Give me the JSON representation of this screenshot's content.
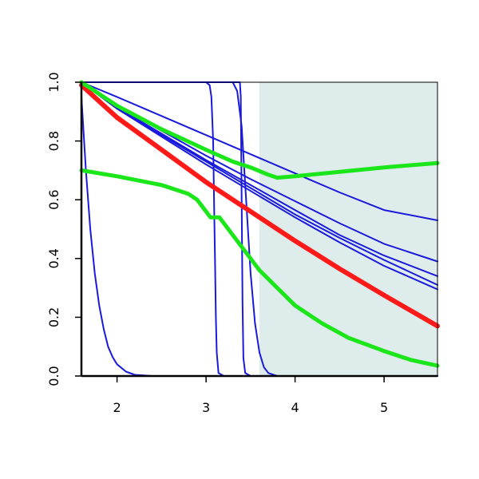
{
  "chart_data": {
    "type": "line",
    "title": "",
    "xlabel": "",
    "ylabel": "",
    "xlim": [
      1.6,
      5.6
    ],
    "ylim": [
      0.0,
      1.0
    ],
    "x_ticks": [
      2,
      3,
      4,
      5
    ],
    "y_ticks": [
      0.0,
      0.2,
      0.4,
      0.6,
      0.8,
      1.0
    ],
    "x_tick_labels": [
      "2",
      "3",
      "4",
      "5"
    ],
    "y_tick_labels": [
      "0.0",
      "0.2",
      "0.4",
      "0.6",
      "0.8",
      "1.0"
    ],
    "grid": false,
    "legend": "none",
    "shaded_region": {
      "x_start": 3.6,
      "x_end": 5.6,
      "color": "#deecec"
    },
    "series": [
      {
        "color": "#1a1adc",
        "width": 2,
        "x": [
          1.6,
          1.65,
          1.7,
          1.75,
          1.8,
          1.85,
          1.9,
          1.95,
          2.0,
          2.1,
          2.2,
          2.4,
          2.6,
          5.6
        ],
        "y": [
          0.95,
          0.7,
          0.5,
          0.35,
          0.24,
          0.16,
          0.1,
          0.065,
          0.04,
          0.015,
          0.004,
          0.0,
          0.0,
          0.0
        ]
      },
      {
        "color": "#1a1adc",
        "width": 2,
        "x": [
          1.6,
          3.0,
          3.04,
          3.06,
          3.08,
          3.09,
          3.1,
          3.11,
          3.12,
          3.14,
          3.2,
          5.6
        ],
        "y": [
          1.0,
          1.0,
          0.99,
          0.95,
          0.8,
          0.6,
          0.4,
          0.2,
          0.08,
          0.01,
          0.0,
          0.0
        ]
      },
      {
        "color": "#1a1adc",
        "width": 2,
        "x": [
          1.6,
          3.38,
          3.39,
          3.4,
          3.41,
          3.42,
          3.44,
          3.5,
          5.6
        ],
        "y": [
          1.0,
          1.0,
          0.95,
          0.6,
          0.25,
          0.06,
          0.01,
          0.0,
          0.0
        ]
      },
      {
        "color": "#1a1adc",
        "width": 2,
        "x": [
          1.6,
          3.3,
          3.35,
          3.4,
          3.45,
          3.5,
          3.55,
          3.6,
          3.65,
          3.7,
          3.8,
          5.6
        ],
        "y": [
          1.0,
          1.0,
          0.97,
          0.85,
          0.6,
          0.35,
          0.18,
          0.08,
          0.03,
          0.01,
          0.0,
          0.0
        ]
      },
      {
        "color": "#1a1adc",
        "width": 2,
        "x": [
          1.6,
          2.0,
          2.5,
          3.0,
          3.5,
          4.0,
          4.5,
          5.0,
          5.6
        ],
        "y": [
          1.0,
          0.95,
          0.885,
          0.82,
          0.755,
          0.69,
          0.625,
          0.565,
          0.53
        ]
      },
      {
        "color": "#1a1adc",
        "width": 2,
        "x": [
          1.6,
          2.0,
          2.5,
          3.0,
          3.5,
          4.0,
          4.5,
          5.0,
          5.6
        ],
        "y": [
          1.0,
          0.92,
          0.835,
          0.75,
          0.67,
          0.595,
          0.52,
          0.45,
          0.39
        ]
      },
      {
        "color": "#1a1adc",
        "width": 2,
        "x": [
          1.6,
          2.0,
          2.5,
          3.0,
          3.5,
          4.0,
          4.5,
          5.0,
          5.6
        ],
        "y": [
          1.0,
          0.915,
          0.825,
          0.735,
          0.65,
          0.565,
          0.48,
          0.41,
          0.34
        ]
      },
      {
        "color": "#1a1adc",
        "width": 2,
        "x": [
          1.6,
          2.0,
          2.5,
          3.0,
          3.5,
          4.0,
          4.5,
          5.0,
          5.6
        ],
        "y": [
          1.0,
          0.91,
          0.82,
          0.73,
          0.64,
          0.55,
          0.47,
          0.395,
          0.31
        ]
      },
      {
        "color": "#1a1adc",
        "width": 2,
        "x": [
          1.6,
          2.0,
          2.5,
          3.0,
          3.5,
          4.0,
          4.5,
          5.0,
          5.6
        ],
        "y": [
          1.0,
          0.91,
          0.815,
          0.72,
          0.63,
          0.54,
          0.455,
          0.375,
          0.295
        ]
      },
      {
        "color": "#ff1a1a",
        "width": 6,
        "x": [
          1.6,
          2.0,
          2.5,
          3.0,
          3.5,
          4.0,
          4.5,
          5.0,
          5.6
        ],
        "y": [
          0.99,
          0.88,
          0.77,
          0.66,
          0.56,
          0.46,
          0.365,
          0.275,
          0.17
        ]
      },
      {
        "color": "#1ae61a",
        "width": 5,
        "x": [
          1.6,
          2.0,
          2.5,
          3.0,
          3.3,
          3.5,
          3.7,
          3.8,
          4.0,
          4.5,
          5.0,
          5.6
        ],
        "y": [
          1.0,
          0.92,
          0.84,
          0.77,
          0.73,
          0.71,
          0.685,
          0.675,
          0.68,
          0.695,
          0.71,
          0.725
        ]
      },
      {
        "color": "#1ae61a",
        "width": 5,
        "x": [
          1.6,
          2.0,
          2.5,
          2.8,
          2.9,
          3.0,
          3.05,
          3.1,
          3.15,
          3.2,
          3.4,
          3.6,
          3.8,
          4.0,
          4.3,
          4.6,
          5.0,
          5.3,
          5.6
        ],
        "y": [
          0.7,
          0.68,
          0.65,
          0.62,
          0.6,
          0.56,
          0.54,
          0.54,
          0.54,
          0.52,
          0.44,
          0.36,
          0.3,
          0.24,
          0.18,
          0.13,
          0.085,
          0.055,
          0.035
        ]
      }
    ]
  }
}
